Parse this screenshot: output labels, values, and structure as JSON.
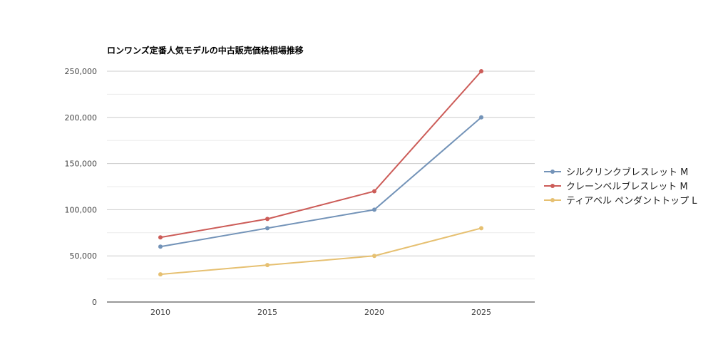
{
  "chart_data": {
    "type": "line",
    "title": "ロンワンズ定番人気モデルの中古販売価格相場推移",
    "x": [
      "2010",
      "2015",
      "2020",
      "2025"
    ],
    "ylim": [
      0,
      250000
    ],
    "y_ticks": [
      "0",
      "50,000",
      "100,000",
      "150,000",
      "200,000",
      "250,000"
    ],
    "grid": true,
    "legend_position": "right",
    "series": [
      {
        "name": "シルクリンクブレスレット M",
        "color": "#7393b8",
        "values": [
          60000,
          80000,
          100000,
          200000
        ]
      },
      {
        "name": "クレーンベルブレスレット M",
        "color": "#cc5c58",
        "values": [
          70000,
          90000,
          120000,
          250000
        ]
      },
      {
        "name": "ティアベル ペンダントトップ L",
        "color": "#e6c071",
        "values": [
          30000,
          40000,
          50000,
          80000
        ]
      }
    ]
  }
}
